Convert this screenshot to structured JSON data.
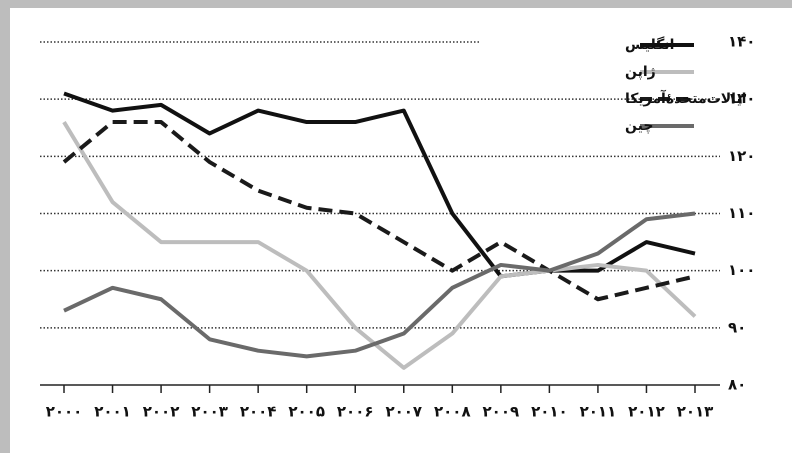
{
  "chart_data": {
    "type": "line",
    "categories": [
      "۲۰۰۰",
      "۲۰۰۱",
      "۲۰۰۲",
      "۲۰۰۳",
      "۲۰۰۴",
      "۲۰۰۵",
      "۲۰۰۶",
      "۲۰۰۷",
      "۲۰۰۸",
      "۲۰۰۹",
      "۲۰۱۰",
      "۲۰۱۱",
      "۲۰۱۲",
      "۲۰۱۳"
    ],
    "series": [
      {
        "name": "انگلیس",
        "color": "#111111",
        "dashed": false,
        "values": [
          131,
          128,
          129,
          124,
          128,
          126,
          126,
          128,
          110,
          99,
          100,
          100,
          105,
          103
        ]
      },
      {
        "name": "ژاپن",
        "color": "#bdbdbd",
        "dashed": false,
        "values": [
          126,
          112,
          105,
          105,
          105,
          100,
          90,
          83,
          89,
          99,
          100,
          101,
          100,
          92
        ]
      },
      {
        "name": "ایالات‌متحدهٔ‌آمریکا",
        "color": "#1a1a1a",
        "dashed": true,
        "values": [
          119,
          126,
          126,
          119,
          114,
          111,
          110,
          105,
          100,
          105,
          100,
          95,
          97,
          99
        ]
      },
      {
        "name": "چین",
        "color": "#6a6a6a",
        "dashed": false,
        "values": [
          93,
          97,
          95,
          88,
          86,
          85,
          86,
          89,
          97,
          101,
          100,
          103,
          109,
          110
        ]
      }
    ],
    "ylim": [
      80,
      140
    ],
    "yticks": [
      {
        "value": 80,
        "label": "۸۰"
      },
      {
        "value": 90,
        "label": "۹۰"
      },
      {
        "value": 100,
        "label": "۱۰۰"
      },
      {
        "value": 110,
        "label": "۱۱۰"
      },
      {
        "value": 120,
        "label": "۱۲۰"
      },
      {
        "value": 130,
        "label": "۱۳۰"
      },
      {
        "value": 140,
        "label": "۱۴۰"
      }
    ],
    "grid": true
  }
}
